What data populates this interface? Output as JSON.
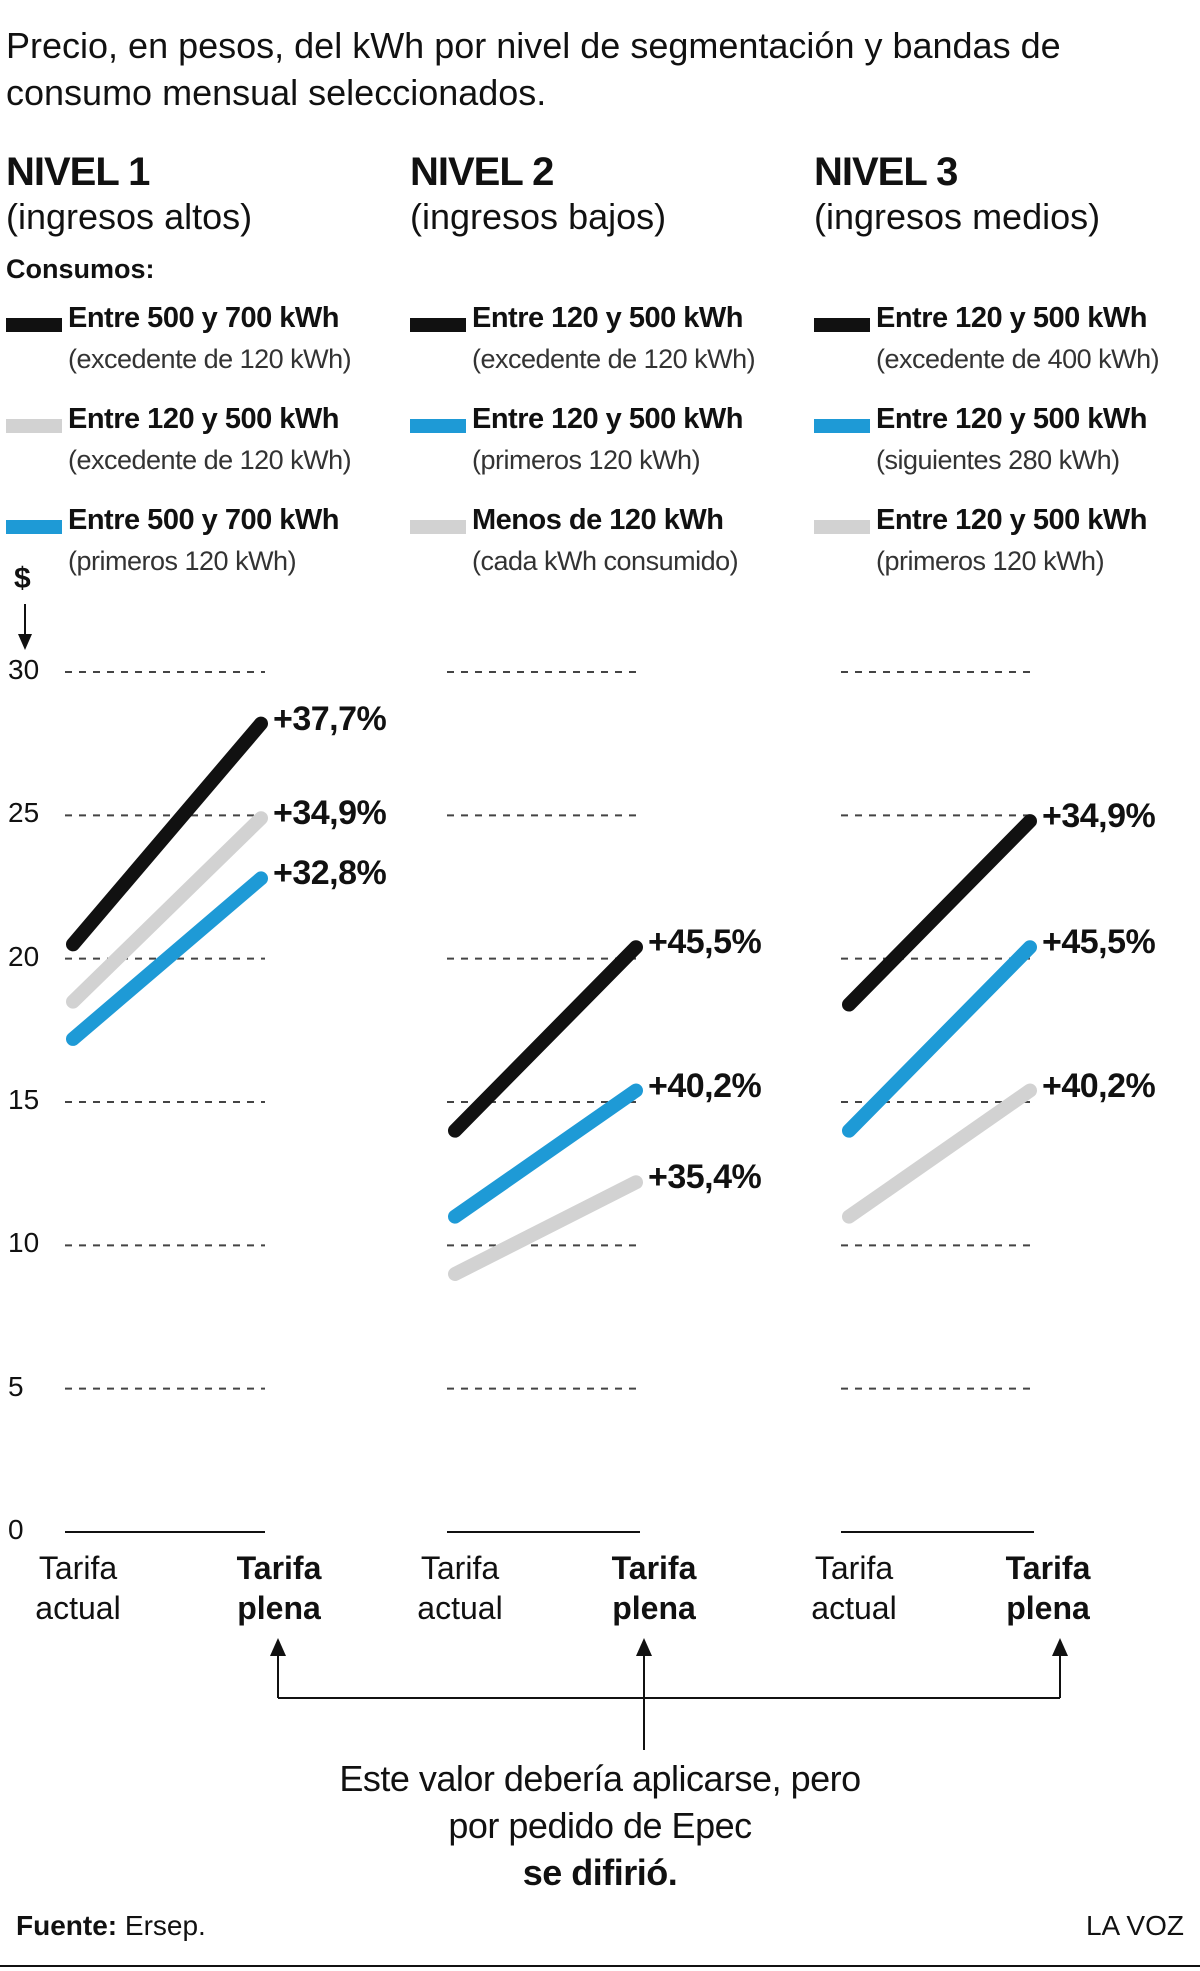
{
  "title": "Precio, en pesos, del kWh por nivel de segmentación y bandas de consumo mensual seleccionados.",
  "legend_heading": "Consumos:",
  "y_unit": "$",
  "note": {
    "text": "Este valor debería aplicarse, pero por pedido de Epec",
    "emphasis": "se difirió."
  },
  "source": {
    "label": "Fuente:",
    "text": "Ersep."
  },
  "brand": "LA VOZ",
  "chart_data": [
    {
      "type": "line",
      "title": "NIVEL 1",
      "subtitle": "(ingresos altos)",
      "categories": [
        "Tarifa actual",
        "Tarifa plena"
      ],
      "ylim": [
        0,
        30
      ],
      "yticks": [
        0,
        5,
        10,
        15,
        20,
        25,
        30
      ],
      "grid": true,
      "series": [
        {
          "name": "Entre 500 y 700 kWh",
          "detail": "(excedente de 120 kWh)",
          "color": "#111111",
          "values": [
            20.5,
            28.2
          ],
          "change_label": "+37,7%"
        },
        {
          "name": "Entre 120 y 500 kWh",
          "detail": "(excedente de 120 kWh)",
          "color": "#d2d2d2",
          "values": [
            18.5,
            24.9
          ],
          "change_label": "+34,9%"
        },
        {
          "name": "Entre 500 y 700 kWh",
          "detail": "(primeros 120 kWh)",
          "color": "#1e9ad6",
          "values": [
            17.2,
            22.8
          ],
          "change_label": "+32,8%"
        }
      ]
    },
    {
      "type": "line",
      "title": "NIVEL 2",
      "subtitle": "(ingresos bajos)",
      "categories": [
        "Tarifa actual",
        "Tarifa plena"
      ],
      "ylim": [
        0,
        30
      ],
      "yticks": [
        0,
        5,
        10,
        15,
        20,
        25,
        30
      ],
      "grid": true,
      "series": [
        {
          "name": "Entre 120 y 500 kWh",
          "detail": "(excedente de 120 kWh)",
          "color": "#111111",
          "values": [
            14.0,
            20.4
          ],
          "change_label": "+45,5%"
        },
        {
          "name": "Entre 120 y 500 kWh",
          "detail": "(primeros 120 kWh)",
          "color": "#1e9ad6",
          "values": [
            11.0,
            15.4
          ],
          "change_label": "+40,2%"
        },
        {
          "name": "Menos de 120 kWh",
          "detail": "(cada kWh consumido)",
          "color": "#d2d2d2",
          "values": [
            9.0,
            12.2
          ],
          "change_label": "+35,4%"
        }
      ]
    },
    {
      "type": "line",
      "title": "NIVEL 3",
      "subtitle": "(ingresos medios)",
      "categories": [
        "Tarifa actual",
        "Tarifa plena"
      ],
      "ylim": [
        0,
        30
      ],
      "yticks": [
        0,
        5,
        10,
        15,
        20,
        25,
        30
      ],
      "grid": true,
      "series": [
        {
          "name": "Entre 120 y 500 kWh",
          "detail": "(excedente de 400 kWh)",
          "color": "#111111",
          "values": [
            18.4,
            24.8
          ],
          "change_label": "+34,9%"
        },
        {
          "name": "Entre 120 y 500 kWh",
          "detail": "(siguientes 280 kWh)",
          "color": "#1e9ad6",
          "values": [
            14.0,
            20.4
          ],
          "change_label": "+45,5%"
        },
        {
          "name": "Entre 120 y 500 kWh",
          "detail": "(primeros 120 kWh)",
          "color": "#d2d2d2",
          "values": [
            11.0,
            15.4
          ],
          "change_label": "+40,2%"
        }
      ]
    }
  ]
}
